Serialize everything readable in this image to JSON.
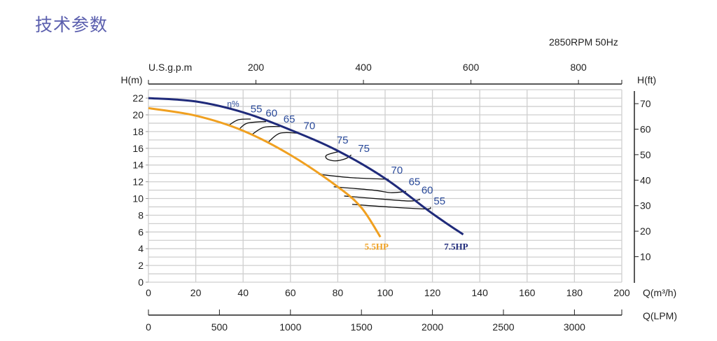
{
  "page_title": "技术参数",
  "chart_data": {
    "type": "line",
    "title": "技术参数",
    "subtitle": "2850RPM  50Hz",
    "xlabel": "Q(m³/h)",
    "ylabel": "H(m)",
    "xlim": [
      0,
      200
    ],
    "ylim": [
      0,
      23
    ],
    "grid": true,
    "x_ticks": [
      0,
      20,
      40,
      60,
      80,
      100,
      120,
      140,
      160,
      180,
      200
    ],
    "y_ticks": [
      0,
      2,
      4,
      6,
      8,
      10,
      12,
      14,
      16,
      18,
      20,
      22
    ],
    "secondary_axes": {
      "top": {
        "label": "U.S.g.p.m",
        "ticks": [
          200,
          400,
          600,
          800
        ],
        "m3h_per_unit": 0.22712
      },
      "right": {
        "label": "H(ft)",
        "ticks": [
          10,
          20,
          30,
          40,
          50,
          60,
          70
        ],
        "m_per_unit": 0.3048
      },
      "bottom2": {
        "label": "Q(LPM)",
        "ticks": [
          0,
          500,
          1000,
          1500,
          2000,
          2500,
          3000
        ],
        "m3h_per_unit": 0.06
      }
    },
    "series": [
      {
        "name": "7.5HP",
        "color": "#1f2a7a",
        "x": [
          0,
          20,
          40,
          60,
          80,
          100,
          120,
          133
        ],
        "y": [
          22,
          21.6,
          20.3,
          18.2,
          15.7,
          12.4,
          8.2,
          5.7
        ],
        "label_at": [
          130,
          4.3
        ]
      },
      {
        "name": "5.5HP",
        "color": "#f0a020",
        "x": [
          0,
          20,
          40,
          60,
          80,
          90,
          98
        ],
        "y": [
          20.8,
          19.9,
          18.1,
          15.2,
          11.4,
          8.9,
          5.4
        ],
        "label_at": [
          96.4,
          4.3
        ]
      }
    ],
    "efficiency_label": {
      "text": "η%",
      "at": [
        35.8,
        21.3
      ]
    },
    "efficiency_contours": [
      {
        "eff": "55",
        "x": [
          33.7,
          37.9,
          43.2
        ],
        "y": [
          18.7,
          19.4,
          19.5
        ],
        "label_at": [
          45.6,
          20.7
        ]
      },
      {
        "eff": "60",
        "x": [
          38.1,
          41.7,
          49.7
        ],
        "y": [
          18.2,
          19.0,
          19.2
        ],
        "label_at": [
          52,
          20.2
        ]
      },
      {
        "eff": "65",
        "x": [
          43.5,
          48.7,
          55.6
        ],
        "y": [
          17.6,
          18.5,
          18.6
        ],
        "label_at": [
          59.5,
          19.5
        ]
      },
      {
        "eff": "70",
        "x": [
          50.5,
          55.6,
          63.5
        ],
        "y": [
          16.7,
          17.8,
          17.8
        ],
        "label_at": [
          68,
          18.7
        ]
      },
      {
        "eff": "75",
        "x": [
          80.2,
          75.4,
          75.4,
          78.8,
          83.2,
          85.7
        ],
        "y": [
          15.6,
          15.2,
          14.75,
          14.5,
          14.75,
          15.2
        ],
        "label_at": [
          82,
          17
        ]
      },
      {
        "eff": "75",
        "x": [],
        "y": [],
        "label_at": [
          91,
          16
        ]
      },
      {
        "eff": "70",
        "x": [
          71.9,
          85.2,
          101.5
        ],
        "y": [
          12.9,
          12.5,
          12.3
        ],
        "label_at": [
          105,
          13.4
        ]
      },
      {
        "eff": "65",
        "x": [
          78.3,
          95,
          102.4,
          108.9
        ],
        "y": [
          11.4,
          11.0,
          10.7,
          10.85
        ],
        "label_at": [
          112.4,
          12
        ]
      },
      {
        "eff": "60",
        "x": [
          82.7,
          100,
          110.8,
          114.8
        ],
        "y": [
          10.3,
          9.9,
          9.7,
          9.9
        ],
        "label_at": [
          117.8,
          11
        ]
      },
      {
        "eff": "55",
        "x": [
          86.1,
          100.9,
          117.2,
          119.2
        ],
        "y": [
          9.3,
          9.0,
          8.75,
          8.95
        ],
        "label_at": [
          123,
          9.7
        ]
      }
    ]
  }
}
